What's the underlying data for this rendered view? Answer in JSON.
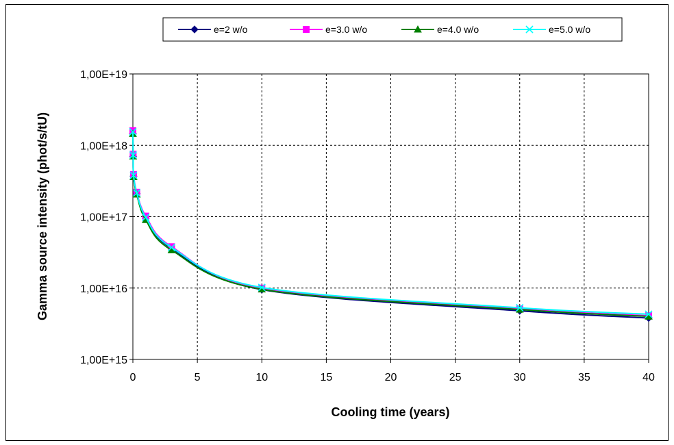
{
  "chart_data": {
    "type": "line",
    "title": "",
    "xlabel": "Cooling time (years)",
    "ylabel": "Gamma source intensity (phot/s/tU)",
    "xlim": [
      0,
      40
    ],
    "ylim": [
      1000000000000000.0,
      1e+19
    ],
    "yscale": "log",
    "grid": true,
    "legend_position": "top",
    "x_ticks": [
      0,
      5,
      10,
      15,
      20,
      25,
      30,
      35,
      40
    ],
    "x_tick_labels": [
      "0",
      "5",
      "10",
      "15",
      "20",
      "25",
      "30",
      "35",
      "40"
    ],
    "y_ticks": [
      1000000000000000.0,
      1e+16,
      1e+17,
      1e+18,
      1e+19
    ],
    "y_tick_labels": [
      "1,00E+15",
      "1,00E+16",
      "1,00E+17",
      "1,00E+18",
      "1,00E+19"
    ],
    "x": [
      0.0,
      0.02,
      0.05,
      0.3,
      1.0,
      3.0,
      10.0,
      30.0,
      40.0
    ],
    "series": [
      {
        "name": "e=2 w/o",
        "color": "#000080",
        "marker": "diamond",
        "values": [
          1.45e+18,
          7e+17,
          3.7e+17,
          2.1e+17,
          9.5e+16,
          3.6e+16,
          9500000000000000.0,
          4800000000000000.0,
          3800000000000000.0
        ]
      },
      {
        "name": "e=3.0 w/o",
        "color": "#ff00ff",
        "marker": "square",
        "values": [
          1.6e+18,
          7.5e+17,
          3.9e+17,
          2.2e+17,
          1.02e+17,
          3.8e+16,
          1e+16,
          5100000000000000.0,
          4100000000000000.0
        ]
      },
      {
        "name": "e=4.0 w/o",
        "color": "#008000",
        "marker": "triangle",
        "values": [
          1.45e+18,
          7e+17,
          3.6e+17,
          2.05e+17,
          9e+16,
          3.4e+16,
          9600000000000000.0,
          5000000000000000.0,
          4000000000000000.0
        ]
      },
      {
        "name": "e=5.0 w/o",
        "color": "#00ffff",
        "marker": "x",
        "values": [
          1.55e+18,
          7.3e+17,
          3.8e+17,
          2.15e+17,
          9.8e+16,
          3.7e+16,
          1.02e+16,
          5300000000000000.0,
          4300000000000000.0
        ]
      }
    ]
  }
}
